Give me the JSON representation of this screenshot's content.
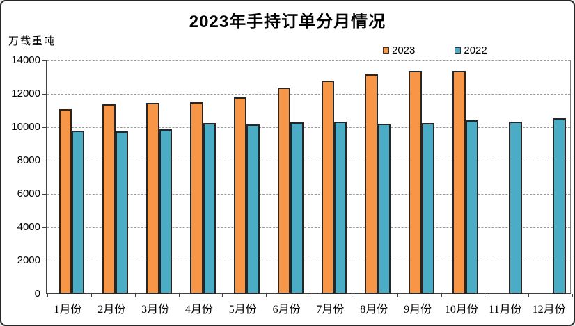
{
  "frame": {
    "background": "#ffffff",
    "border_color": "#262626"
  },
  "chart_data": {
    "type": "bar",
    "title": "2023年手持订单分月情况",
    "unit_label": "万载重吨",
    "xlabel": "",
    "ylabel": "万载重吨",
    "categories": [
      "1月份",
      "2月份",
      "3月份",
      "4月份",
      "5月份",
      "6月份",
      "7月份",
      "8月份",
      "9月份",
      "10月份",
      "11月份",
      "12月份"
    ],
    "series": [
      {
        "name": "2023",
        "color": "#F79646",
        "values": [
          11077,
          11358,
          11452,
          11510,
          11799,
          12377,
          12790,
          13155,
          13393,
          13382,
          null,
          null
        ]
      },
      {
        "name": "2022",
        "color": "#4BACC6",
        "values": [
          9806,
          9762,
          9894,
          10247,
          10157,
          10274,
          10332,
          10189,
          10265,
          10404,
          10339,
          10557
        ]
      }
    ],
    "ylim": [
      0,
      14000
    ],
    "yticks": [
      0,
      2000,
      4000,
      6000,
      8000,
      10000,
      12000,
      14000
    ],
    "grid": "horizontal-dashed",
    "legend_position": "top-right",
    "bar_border_color": "#262626",
    "gridline_color": "#9a9a9a",
    "axis_color": "#404040"
  }
}
